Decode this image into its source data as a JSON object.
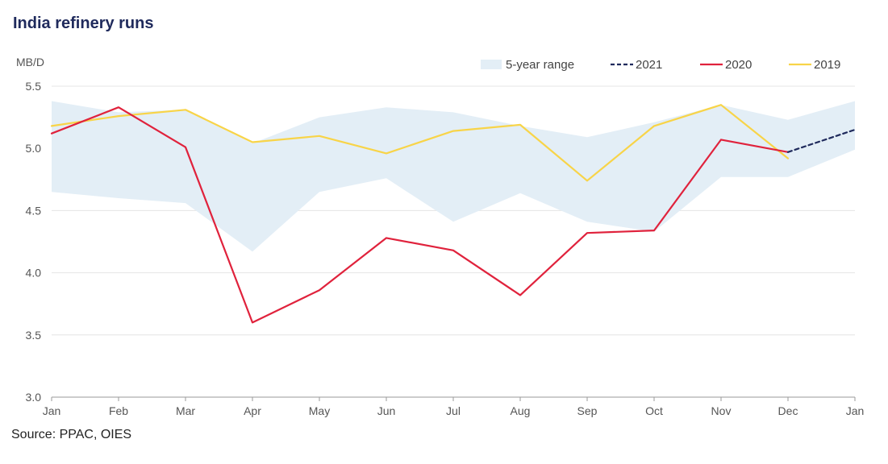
{
  "title": "India refinery runs",
  "source": "Source: PPAC, OIES",
  "colors": {
    "range": "#e3eef6",
    "s2021": "#1f2a5c",
    "s2020": "#e0223c",
    "s2019": "#f8d448",
    "grid": "#e4e4e4",
    "axis": "#9a9a9a"
  },
  "chart_data": {
    "type": "line",
    "ylabel": "MB/D",
    "ylim": [
      3.0,
      5.5
    ],
    "yticks": [
      "5.5",
      "5.0",
      "4.5",
      "4.0",
      "3.5",
      "3.0"
    ],
    "x": [
      "Jan",
      "Feb",
      "Mar",
      "Apr",
      "May",
      "Jun",
      "Jul",
      "Aug",
      "Sep",
      "Oct",
      "Nov",
      "Dec",
      "Jan"
    ],
    "legend_position": "top-right",
    "grid": true,
    "range": {
      "name": "5-year range",
      "min": [
        4.65,
        4.6,
        4.56,
        4.17,
        4.65,
        4.76,
        4.41,
        4.64,
        4.41,
        4.33,
        4.77,
        4.77,
        4.99
      ],
      "max": [
        5.38,
        5.29,
        5.31,
        5.04,
        5.25,
        5.33,
        5.29,
        5.18,
        5.09,
        5.21,
        5.35,
        5.23,
        5.38
      ]
    },
    "series": [
      {
        "name": "2021",
        "style": "dashed",
        "values": [
          null,
          null,
          null,
          null,
          null,
          null,
          null,
          null,
          null,
          null,
          null,
          4.97,
          5.15
        ]
      },
      {
        "name": "2020",
        "style": "solid",
        "values": [
          5.12,
          5.33,
          5.01,
          3.6,
          3.86,
          4.28,
          4.18,
          3.82,
          4.32,
          4.34,
          5.07,
          4.97,
          null
        ]
      },
      {
        "name": "2019",
        "style": "solid",
        "values": [
          5.18,
          5.26,
          5.31,
          5.05,
          5.1,
          4.96,
          5.14,
          5.19,
          4.74,
          5.18,
          5.35,
          4.92,
          null
        ]
      }
    ]
  }
}
